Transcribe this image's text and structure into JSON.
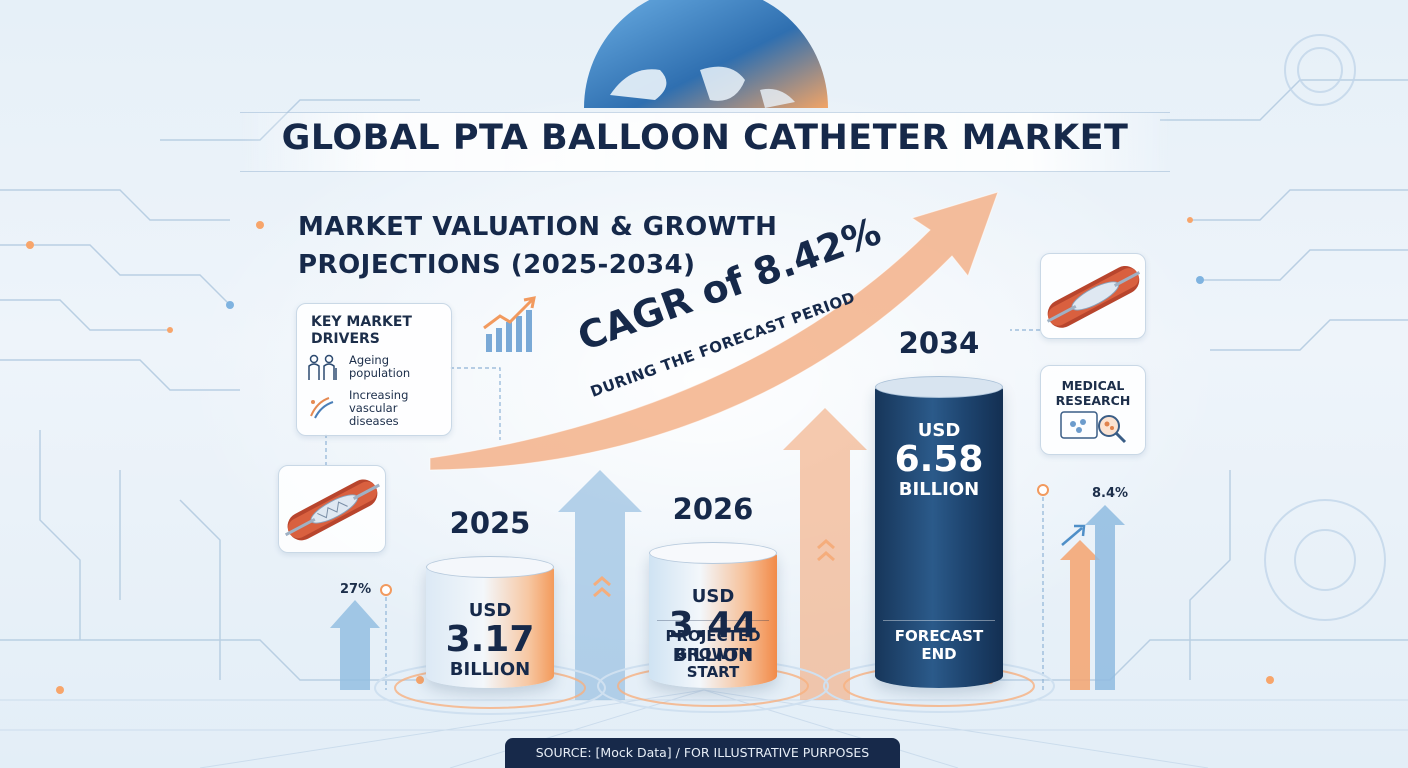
{
  "title": "GLOBAL PTA BALLOON CATHETER MARKET",
  "subtitle_line1": "MARKET VALUATION & GROWTH",
  "subtitle_line2": "PROJECTIONS (2025-2034)",
  "cagr": {
    "main": "CAGR of 8.42%",
    "sub": "DURING THE FORECAST PERIOD"
  },
  "drivers": {
    "title_line1": "KEY MARKET",
    "title_line2": "DRIVERS",
    "items": [
      {
        "line1": "Ageing",
        "line2": "population",
        "icon": "people-icon"
      },
      {
        "line1": "Increasing",
        "line2": "vascular",
        "line3": "diseases",
        "icon": "vessel-icon"
      }
    ]
  },
  "research": {
    "line1": "MEDICAL",
    "line2": "RESEARCH",
    "icon": "microscope-icon"
  },
  "side_labels": {
    "left_pct": "27%",
    "right_pct": "8.4%"
  },
  "source": "SOURCE: [Mock Data] / FOR ILLUSTRATIVE PURPOSES",
  "colors": {
    "navy": "#16294a",
    "orange": "#f39a5b",
    "blue": "#5f9fd3",
    "dark_bar": "#1d3f66"
  },
  "chart_data": {
    "type": "bar",
    "categories": [
      "2025",
      "2026",
      "2034"
    ],
    "values": [
      3.17,
      3.44,
      6.58
    ],
    "unit_prefix": "USD",
    "unit_suffix": "BILLION",
    "value_labels": [
      "3.17",
      "3.44",
      "6.58"
    ],
    "notes": [
      "",
      "PROJECTED GROWTH START",
      "FORECAST END"
    ]
  }
}
